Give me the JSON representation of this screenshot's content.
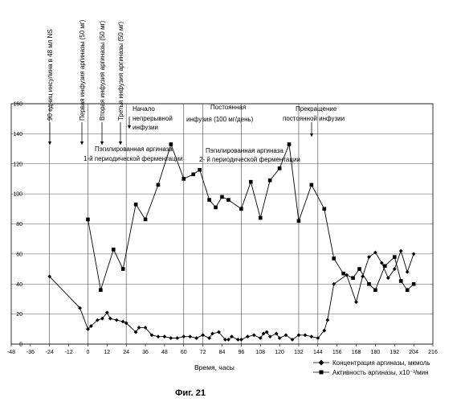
{
  "figure_caption": "Фиг.       21",
  "chart_data": {
    "type": "line",
    "xlabel": "Время, часы",
    "ylabel": "",
    "xlim": [
      -48,
      216
    ],
    "ylim": [
      0,
      160
    ],
    "x_ticks": [
      -48,
      -36,
      -24,
      -12,
      0,
      12,
      24,
      36,
      48,
      60,
      72,
      84,
      96,
      108,
      120,
      132,
      144,
      156,
      168,
      180,
      192,
      204,
      216
    ],
    "y_ticks": [
      0,
      20,
      40,
      60,
      80,
      100,
      120,
      140,
      160
    ],
    "grid": "horizontal",
    "legend": "bottom-right",
    "series": [
      {
        "name": "Концентрация аргиназы, мкмоль",
        "marker": "diamond",
        "color": "#000000",
        "points": [
          [
            -24,
            45
          ],
          [
            -5,
            24
          ],
          [
            0,
            10
          ],
          [
            2,
            12
          ],
          [
            6,
            16
          ],
          [
            9,
            17
          ],
          [
            12,
            21
          ],
          [
            14,
            17
          ],
          [
            18,
            16
          ],
          [
            22,
            15
          ],
          [
            24,
            14
          ],
          [
            30,
            8
          ],
          [
            32,
            11
          ],
          [
            36,
            11
          ],
          [
            40,
            6
          ],
          [
            44,
            5
          ],
          [
            48,
            5
          ],
          [
            52,
            4
          ],
          [
            56,
            4
          ],
          [
            60,
            5
          ],
          [
            64,
            5
          ],
          [
            68,
            4
          ],
          [
            72,
            6
          ],
          [
            76,
            4
          ],
          [
            78,
            7
          ],
          [
            82,
            8
          ],
          [
            86,
            3
          ],
          [
            88,
            3
          ],
          [
            90,
            5
          ],
          [
            94,
            3
          ],
          [
            96,
            3
          ],
          [
            100,
            5
          ],
          [
            104,
            6
          ],
          [
            108,
            4
          ],
          [
            110,
            7
          ],
          [
            112,
            8
          ],
          [
            114,
            5
          ],
          [
            118,
            7
          ],
          [
            120,
            4
          ],
          [
            124,
            6
          ],
          [
            128,
            3
          ],
          [
            132,
            6
          ],
          [
            136,
            6
          ],
          [
            140,
            5
          ],
          [
            144,
            4
          ],
          [
            148,
            9
          ],
          [
            150,
            16
          ],
          [
            154,
            40
          ],
          [
            162,
            46
          ],
          [
            168,
            28
          ],
          [
            172,
            45
          ],
          [
            176,
            58
          ],
          [
            180,
            61
          ],
          [
            184,
            54
          ],
          [
            188,
            44
          ],
          [
            192,
            50
          ],
          [
            196,
            62
          ],
          [
            200,
            48
          ],
          [
            204,
            60
          ]
        ]
      },
      {
        "name": "Активность аргиназы, x10⁻³/мин",
        "marker": "square",
        "color": "#000000",
        "points": [
          [
            0,
            83
          ],
          [
            8,
            36
          ],
          [
            16,
            63
          ],
          [
            22,
            50
          ],
          [
            30,
            93
          ],
          [
            36,
            83
          ],
          [
            44,
            106
          ],
          [
            52,
            133
          ],
          [
            60,
            110
          ],
          [
            66,
            113
          ],
          [
            70,
            116
          ],
          [
            76,
            96
          ],
          [
            80,
            91
          ],
          [
            84,
            98
          ],
          [
            88,
            96
          ],
          [
            96,
            90
          ],
          [
            102,
            108
          ],
          [
            108,
            84
          ],
          [
            114,
            109
          ],
          [
            120,
            117
          ],
          [
            126,
            133
          ],
          [
            132,
            82
          ],
          [
            140,
            106
          ],
          [
            148,
            90
          ],
          [
            154,
            57
          ],
          [
            160,
            47
          ],
          [
            166,
            44
          ],
          [
            170,
            50
          ],
          [
            176,
            40
          ],
          [
            180,
            36
          ],
          [
            186,
            52
          ],
          [
            192,
            58
          ],
          [
            196,
            42
          ],
          [
            200,
            36
          ],
          [
            204,
            40
          ]
        ]
      }
    ],
    "events": [
      {
        "x": -24,
        "label": "90 едниц инсулина в 48 мл NS"
      },
      {
        "x": 0,
        "label": "Первая инфузия аргиназы (50 мг)"
      },
      {
        "x": 12,
        "label": "Вторая  инфузия аргиназы (50 мг)"
      },
      {
        "x": 24,
        "label": "Третья инфузия аргиназы (50 мг)"
      }
    ],
    "annotations": [
      {
        "lines": [
          "Начало",
          "непрерывной",
          "инфузии"
        ]
      },
      {
        "lines": [
          "Постоянная",
          "инфузия (100 мг/день)"
        ]
      },
      {
        "lines": [
          "Прекращение",
          "постоянной инфузии"
        ]
      },
      {
        "lines": [
          "Пэгилированная аргиназа",
          "1-й периодической ферментации"
        ]
      },
      {
        "lines": [
          "Пэгилированная аргиназа",
          "2- й периодической ферментации"
        ]
      }
    ]
  }
}
